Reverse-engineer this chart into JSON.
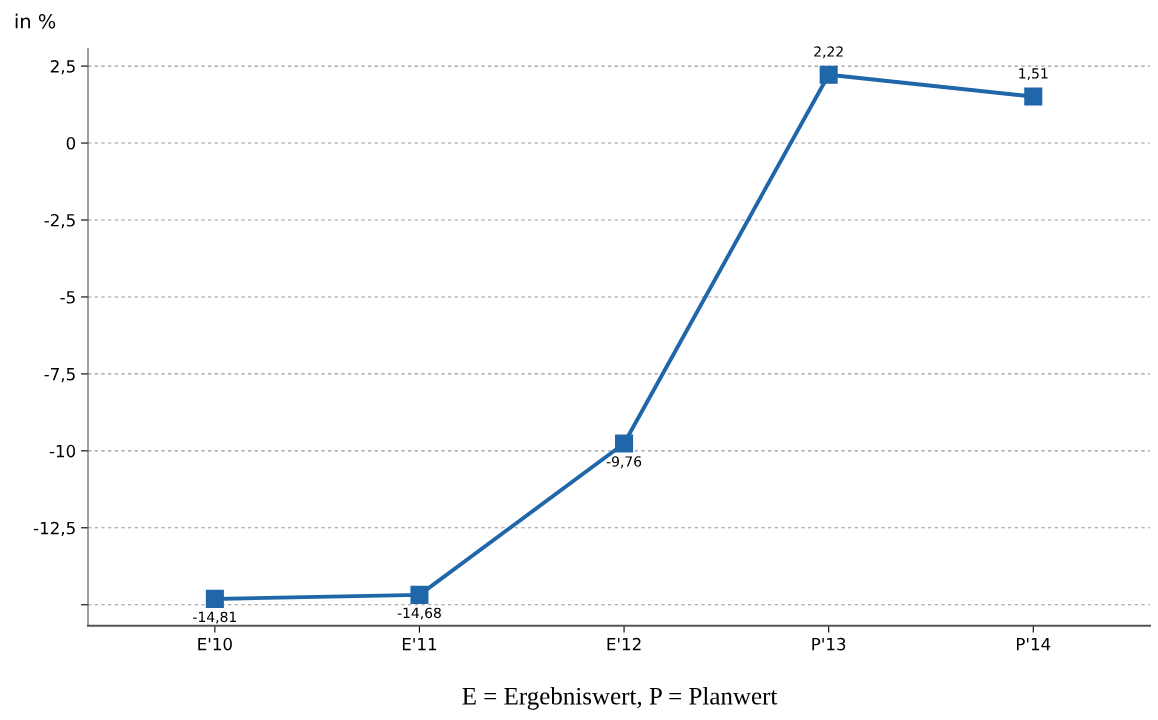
{
  "chart_data": {
    "type": "line",
    "ylabel": "in %",
    "annotations": [
      "E = Ergebniswert, P = Planwert"
    ],
    "categories": [
      "E'10",
      "E'11",
      "E'12",
      "P'13",
      "P'14"
    ],
    "series": [
      {
        "color": "#1f67a8",
        "values": [
          -14.81,
          -14.68,
          -9.76,
          2.22,
          1.51
        ],
        "value_labels": [
          "-14,81",
          "-14,68",
          "-9,76",
          "2,22",
          "1,51"
        ]
      }
    ],
    "ylim": [
      -15.68,
      3.08
    ],
    "yticks": [
      {
        "value": 2.5,
        "label": "2,5"
      },
      0,
      {
        "value": -2.5,
        "label": "-2,5"
      },
      {
        "value": -5,
        "label": "-5"
      },
      {
        "value": -7.5,
        "label": "-7,5"
      },
      {
        "value": -10,
        "label": "-10"
      },
      {
        "value": -12.5,
        "label": "-12,5"
      },
      {
        "value": -15,
        "label": null
      }
    ],
    "grid": "y",
    "marker": "square",
    "line_style": "solid",
    "legend": false
  }
}
